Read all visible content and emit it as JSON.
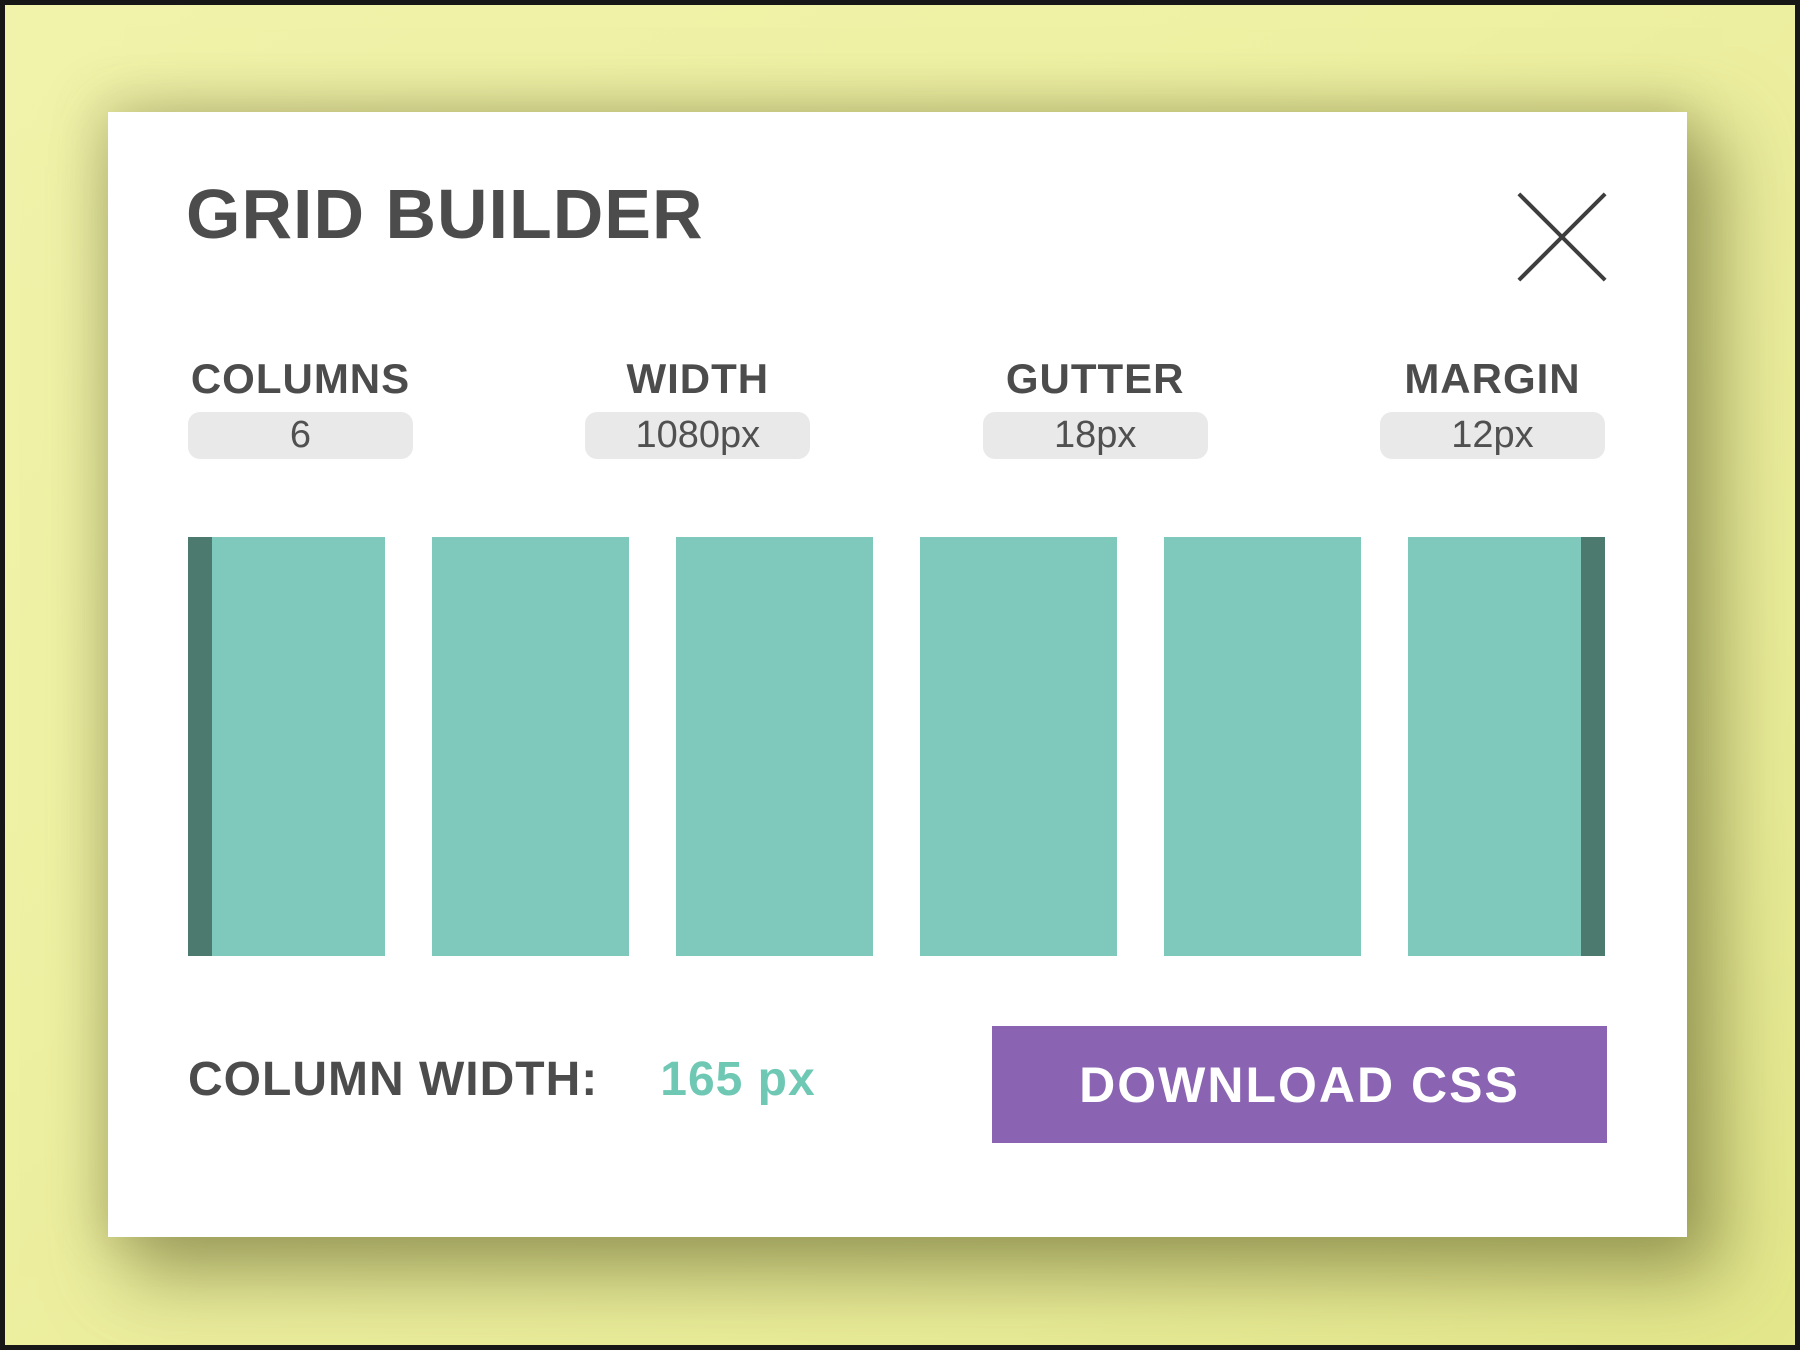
{
  "app": {
    "title": "GRID BUILDER"
  },
  "icons": {
    "close": "x"
  },
  "fields": [
    {
      "id": "columns",
      "label": "COLUMNS",
      "value": "6"
    },
    {
      "id": "width",
      "label": "WIDTH",
      "value": "1080px"
    },
    {
      "id": "gutter",
      "label": "GUTTER",
      "value": "18px"
    },
    {
      "id": "margin",
      "label": "MARGIN",
      "value": "12px"
    }
  ],
  "preview": {
    "column_count": 6,
    "has_left_margin_strip": true,
    "has_right_margin_strip": true
  },
  "footer": {
    "column_width_label": "COLUMN WIDTH:",
    "column_width_value": "165 px",
    "download_button": "DOWNLOAD CSS"
  },
  "colors": {
    "background": "#eef0a2",
    "card": "#ffffff",
    "text_dark": "#4c4c4c",
    "input_bg": "#e9e9e9",
    "column_teal": "#7ec9bb",
    "margin_teal": "#4d7a6e",
    "accent_teal": "#6fc8b4",
    "button_purple": "#8a63b2",
    "button_text": "#ffffff"
  }
}
